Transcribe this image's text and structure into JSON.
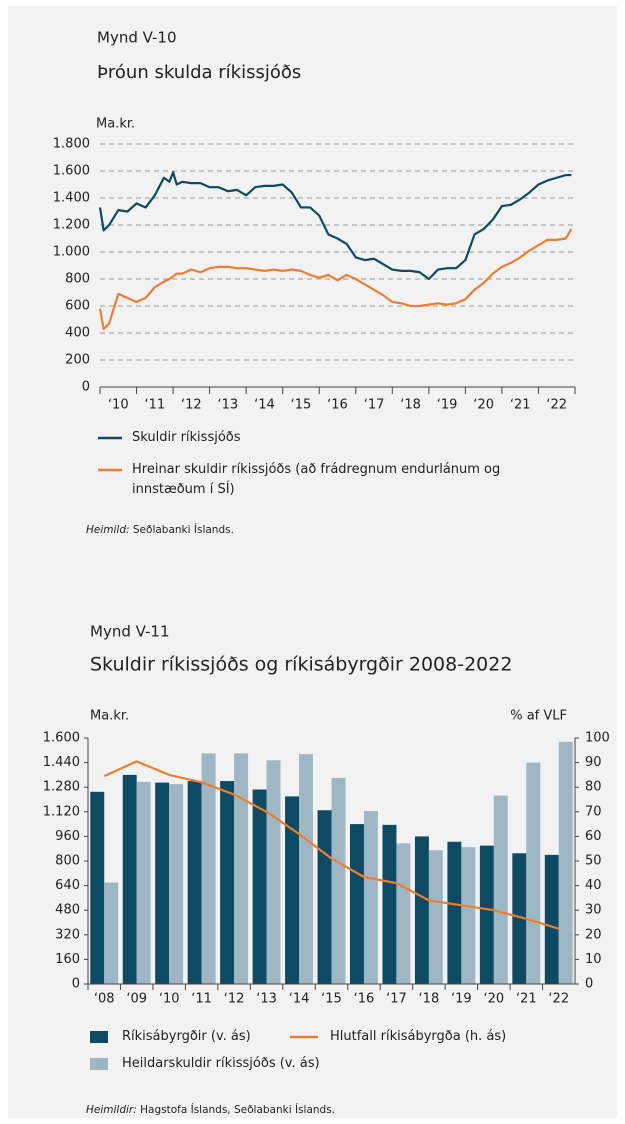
{
  "chart_data": [
    {
      "type": "line",
      "label": "Mynd V-10",
      "title": "Þróun skulda ríkissjóðs",
      "y_label": "Ma.kr.",
      "x": [
        2010.0,
        2010.1,
        2010.25,
        2010.5,
        2010.75,
        2011.0,
        2011.25,
        2011.5,
        2011.75,
        2011.9,
        2012.0,
        2012.1,
        2012.25,
        2012.5,
        2012.75,
        2013.0,
        2013.25,
        2013.5,
        2013.75,
        2014.0,
        2014.25,
        2014.5,
        2014.75,
        2015.0,
        2015.25,
        2015.5,
        2015.75,
        2016.0,
        2016.25,
        2016.5,
        2016.75,
        2017.0,
        2017.25,
        2017.5,
        2017.75,
        2018.0,
        2018.25,
        2018.5,
        2018.75,
        2019.0,
        2019.25,
        2019.5,
        2019.75,
        2020.0,
        2020.25,
        2020.5,
        2020.75,
        2021.0,
        2021.25,
        2021.5,
        2021.75,
        2022.0,
        2022.25,
        2022.5,
        2022.75,
        2022.9
      ],
      "series": [
        {
          "name": "Skuldir ríkissjóðs",
          "color": "#0d4a63",
          "values": [
            1330,
            1160,
            1200,
            1310,
            1300,
            1360,
            1330,
            1420,
            1550,
            1520,
            1590,
            1500,
            1520,
            1510,
            1510,
            1480,
            1480,
            1450,
            1460,
            1420,
            1480,
            1490,
            1490,
            1500,
            1440,
            1330,
            1330,
            1270,
            1130,
            1100,
            1060,
            960,
            940,
            950,
            910,
            870,
            860,
            860,
            850,
            800,
            870,
            880,
            880,
            940,
            1130,
            1170,
            1240,
            1340,
            1350,
            1390,
            1440,
            1500,
            1530,
            1550,
            1570,
            1570
          ]
        },
        {
          "name": "Hreinar skuldir ríkissjóðs (að frádregnum endurlánum og innstæðum í SÍ)",
          "color": "#ee7d31",
          "values": [
            580,
            430,
            470,
            690,
            660,
            630,
            660,
            740,
            780,
            800,
            820,
            840,
            840,
            870,
            850,
            880,
            890,
            890,
            880,
            880,
            870,
            860,
            870,
            860,
            870,
            860,
            830,
            810,
            830,
            790,
            830,
            800,
            760,
            720,
            680,
            630,
            620,
            600,
            600,
            610,
            620,
            610,
            620,
            650,
            720,
            770,
            840,
            890,
            920,
            960,
            1010,
            1050,
            1090,
            1090,
            1100,
            1170
          ]
        }
      ],
      "xlim": [
        2010,
        2023
      ],
      "xticks": [
        {
          "value": 2010.5,
          "label": "‘10"
        },
        {
          "value": 2011.5,
          "label": "‘11"
        },
        {
          "value": 2012.5,
          "label": "‘12"
        },
        {
          "value": 2013.5,
          "label": "‘13"
        },
        {
          "value": 2014.5,
          "label": "‘14"
        },
        {
          "value": 2015.5,
          "label": "‘15"
        },
        {
          "value": 2016.5,
          "label": "‘16"
        },
        {
          "value": 2017.5,
          "label": "‘17"
        },
        {
          "value": 2018.5,
          "label": "‘18"
        },
        {
          "value": 2019.5,
          "label": "‘19"
        },
        {
          "value": 2020.5,
          "label": "‘20"
        },
        {
          "value": 2021.5,
          "label": "‘21"
        },
        {
          "value": 2022.5,
          "label": "‘22"
        }
      ],
      "ylim": [
        0,
        1800
      ],
      "yticks": [
        0,
        200,
        400,
        600,
        800,
        {
          "value": 1000,
          "label": "1.000"
        },
        {
          "value": 1200,
          "label": "1.200"
        },
        {
          "value": 1400,
          "label": "1.400"
        },
        {
          "value": 1600,
          "label": "1.600"
        },
        {
          "value": 1800,
          "label": "1.800"
        }
      ],
      "grid": true,
      "source_label": "Heimild:",
      "source": "Seðlabanki Íslands."
    },
    {
      "type": "bar",
      "label": "Mynd V-11",
      "title": "Skuldir ríkissjóðs og ríkisábyrgðir 2008-2022",
      "y_label": "Ma.kr.",
      "y2_label": "% af VLF",
      "categories": [
        "‘08",
        "‘09",
        "‘10",
        "‘11",
        "‘12",
        "‘13",
        "‘14",
        "‘15",
        "‘16",
        "‘17",
        "‘18",
        "‘19",
        "‘20",
        "‘21",
        "‘22"
      ],
      "series": [
        {
          "name": "Ríkisábyrgðir (v. ás)",
          "color": "#0d4a63",
          "values": [
            1250,
            1360,
            1310,
            1320,
            1320,
            1265,
            1220,
            1130,
            1040,
            1035,
            960,
            925,
            900,
            850,
            840
          ]
        },
        {
          "name": "Hlutfall ríkisábyrgða (h. ás)",
          "color": "#ee7d31",
          "type": "line",
          "axis": "y2",
          "values": [
            84.5,
            90.5,
            85,
            82,
            77,
            70,
            61,
            51,
            43.5,
            41,
            34,
            32,
            30,
            26.5,
            22.5
          ]
        },
        {
          "name": "Heildarskuldir ríkissjóðs (v. ás)",
          "color": "#9fb7c5",
          "values": [
            660,
            1315,
            1300,
            1500,
            1500,
            1455,
            1495,
            1340,
            1125,
            915,
            870,
            890,
            1225,
            1440,
            1575
          ]
        }
      ],
      "ylim": [
        0,
        1600
      ],
      "yticks": [
        0,
        160,
        320,
        480,
        640,
        800,
        960,
        {
          "value": 1120,
          "label": "1.120"
        },
        {
          "value": 1280,
          "label": "1.280"
        },
        {
          "value": 1440,
          "label": "1.440"
        },
        {
          "value": 1600,
          "label": "1.600"
        }
      ],
      "y2lim": [
        0,
        100
      ],
      "y2ticks": [
        0,
        10,
        20,
        30,
        40,
        50,
        60,
        70,
        80,
        90,
        100
      ],
      "grid": false,
      "source_label": "Heimildir:",
      "source": "Hagstofa Íslands, Seðlabanki Íslands."
    }
  ]
}
